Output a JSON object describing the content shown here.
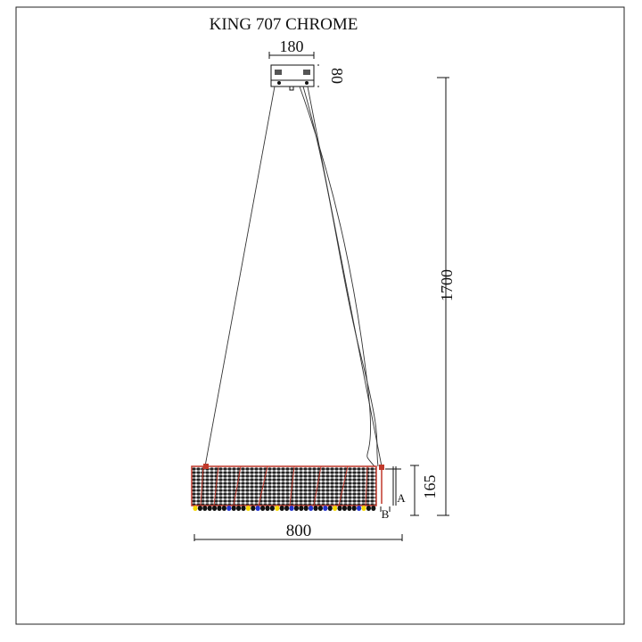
{
  "title": "KING 707 CHROME",
  "dimensions": {
    "canopy_width": "180",
    "canopy_height": "80",
    "overall_height": "1700",
    "body_height": "165",
    "body_width": "800",
    "label_a": "A",
    "label_b": "B"
  },
  "colors": {
    "line": "#111111",
    "frame_red": "#c0392b",
    "crystal_blue": "#2233cc",
    "crystal_yellow": "#f5d800"
  }
}
